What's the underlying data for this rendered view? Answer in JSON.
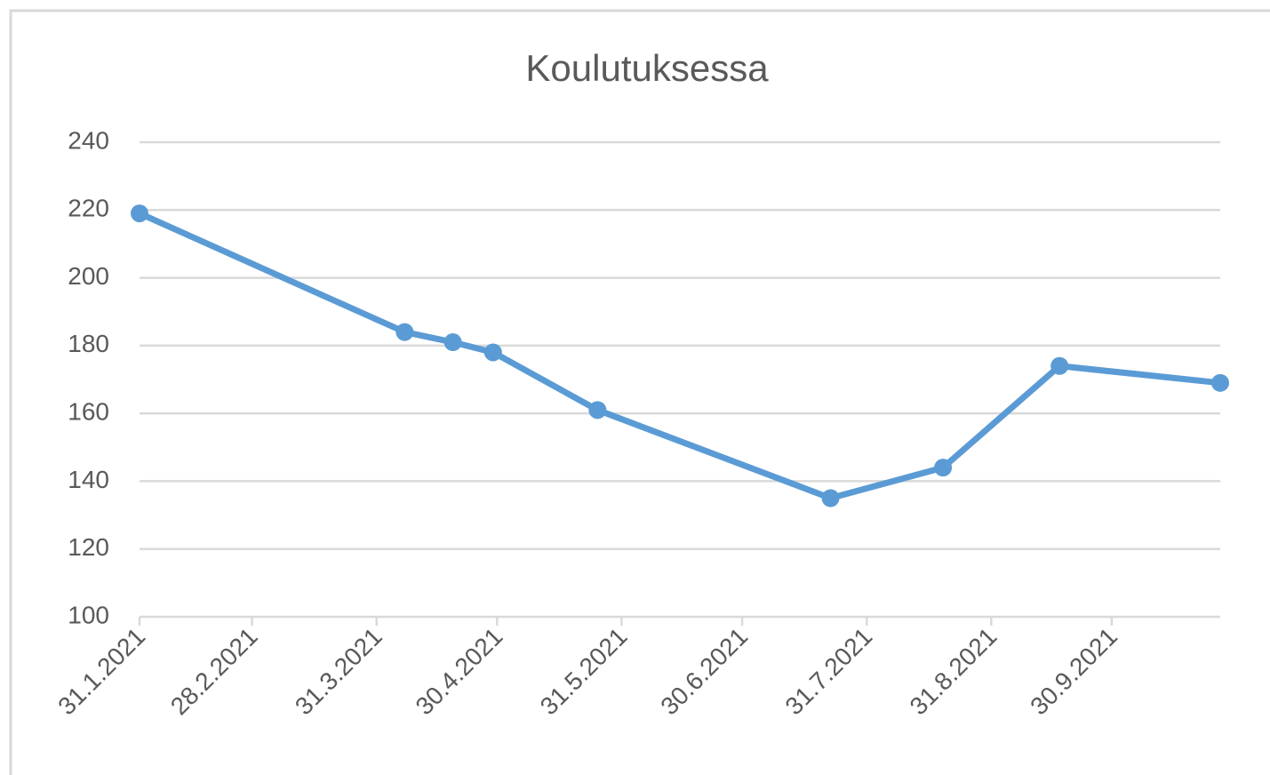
{
  "chart_data": {
    "type": "line",
    "title": "Koulutuksessa",
    "x": [
      "31.1.2021",
      "7.4.2021",
      "19.4.2021",
      "29.4.2021",
      "25.5.2021",
      "22.7.2021",
      "19.8.2021",
      "17.9.2021",
      "27.10.2021"
    ],
    "series": [
      {
        "name": "Koulutuksessa",
        "color": "#5b9bd5",
        "values": [
          219,
          184,
          181,
          178,
          161,
          135,
          144,
          174,
          169
        ]
      }
    ],
    "xlim": [
      "31.1.2021",
      "27.10.2021"
    ],
    "xticks": [
      "31.1.2021",
      "28.2.2021",
      "31.3.2021",
      "30.4.2021",
      "31.5.2021",
      "30.6.2021",
      "31.7.2021",
      "31.8.2021",
      "30.9.2021"
    ],
    "ylim": [
      100,
      240
    ],
    "yticks": [
      100,
      120,
      140,
      160,
      180,
      200,
      220,
      240
    ],
    "grid": true
  }
}
